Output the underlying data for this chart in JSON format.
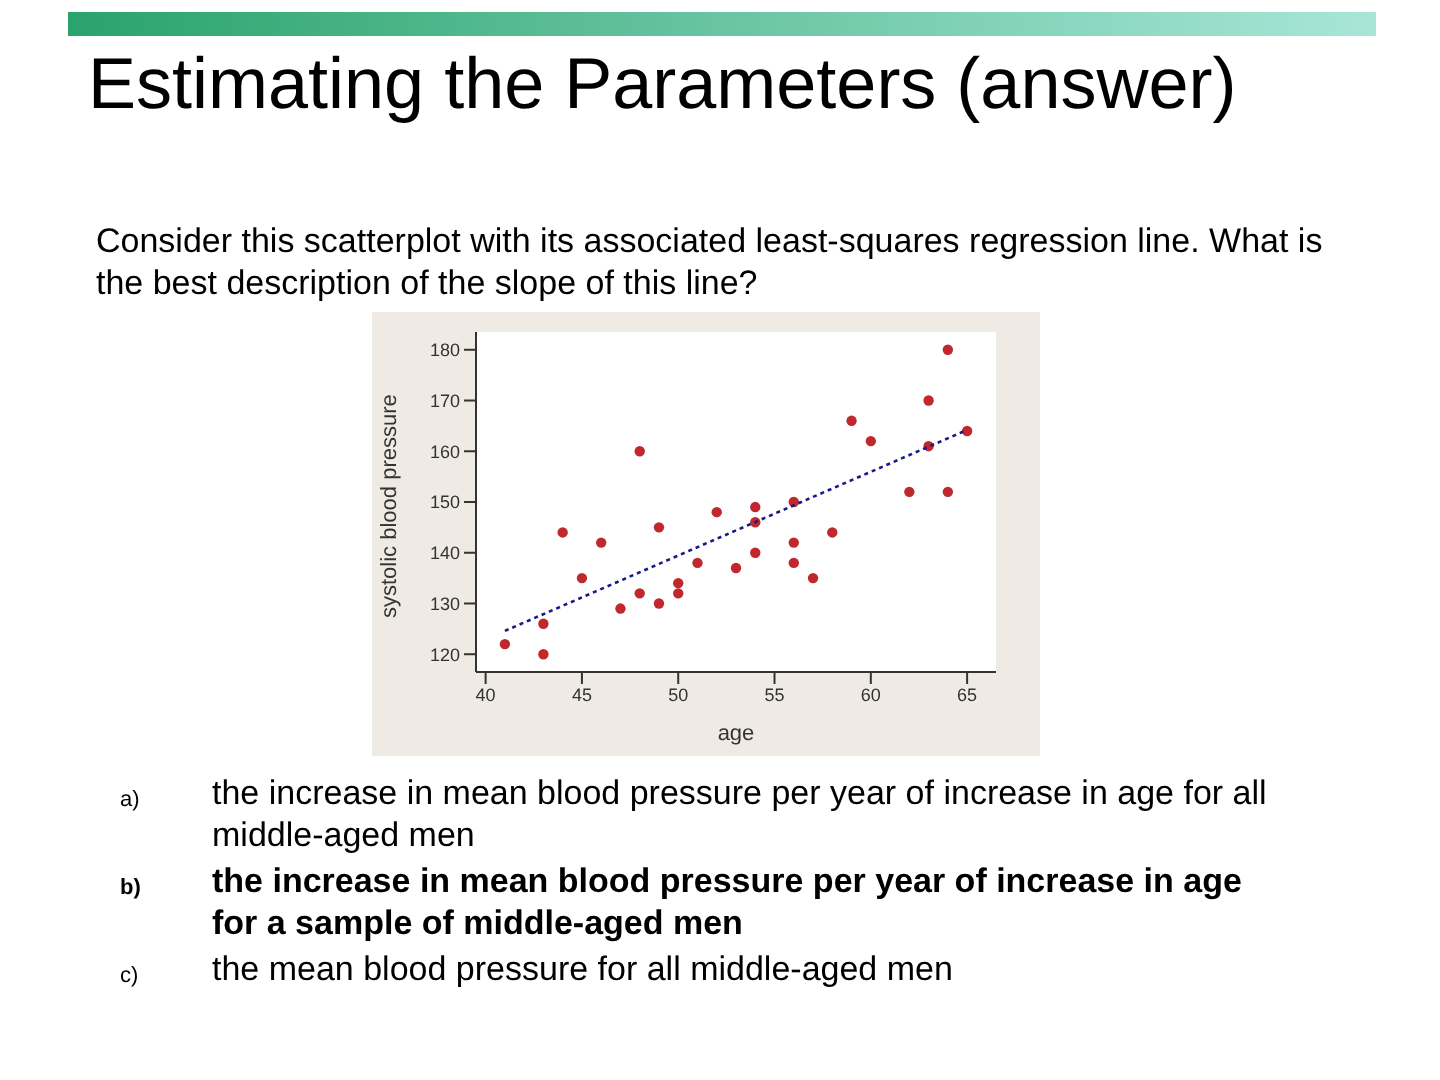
{
  "chart_data": {
    "type": "scatter",
    "title": "Estimating the Parameters (answer)",
    "subtitle": "Consider this scatterplot with its associated least-squares regression line. What is the best description of the slope of this line?",
    "xlabel": "age",
    "ylabel": "systolic blood pressure",
    "xlim": [
      39.5,
      66.5
    ],
    "ylim": [
      116.5,
      183.5
    ],
    "xticks": [
      40,
      45,
      50,
      55,
      60,
      65
    ],
    "yticks": [
      120,
      130,
      140,
      150,
      160,
      170,
      180
    ],
    "grid": false,
    "legend": false,
    "series": [
      {
        "type": "scatter",
        "color": "#c0282d",
        "marker": "circle",
        "x": [
          41,
          43,
          43,
          44,
          45,
          46,
          47,
          48,
          48,
          49,
          49,
          50,
          50,
          51,
          52,
          53,
          54,
          54,
          54,
          56,
          56,
          56,
          57,
          58,
          59,
          60,
          62,
          63,
          63,
          64,
          64,
          65
        ],
        "values": [
          122,
          126,
          120,
          144,
          135,
          142,
          129,
          160,
          132,
          145,
          130,
          134,
          132,
          138,
          148,
          137,
          149,
          146,
          140,
          150,
          142,
          138,
          135,
          144,
          166,
          162,
          152,
          170,
          161,
          180,
          152,
          164
        ]
      },
      {
        "type": "line",
        "color": "#1a1a8a",
        "marker": "none",
        "line_style": "dotted",
        "x": [
          41,
          65
        ],
        "values": [
          124.6,
          164.2
        ]
      }
    ],
    "annotations": [
      "a)",
      "the increase in mean blood pressure per year of increase in age for all middle-aged men",
      "b)",
      "the increase in mean blood pressure per year of increase in age for a sample of middle-aged men",
      "c)",
      "the mean blood pressure for all middle-aged men"
    ]
  }
}
